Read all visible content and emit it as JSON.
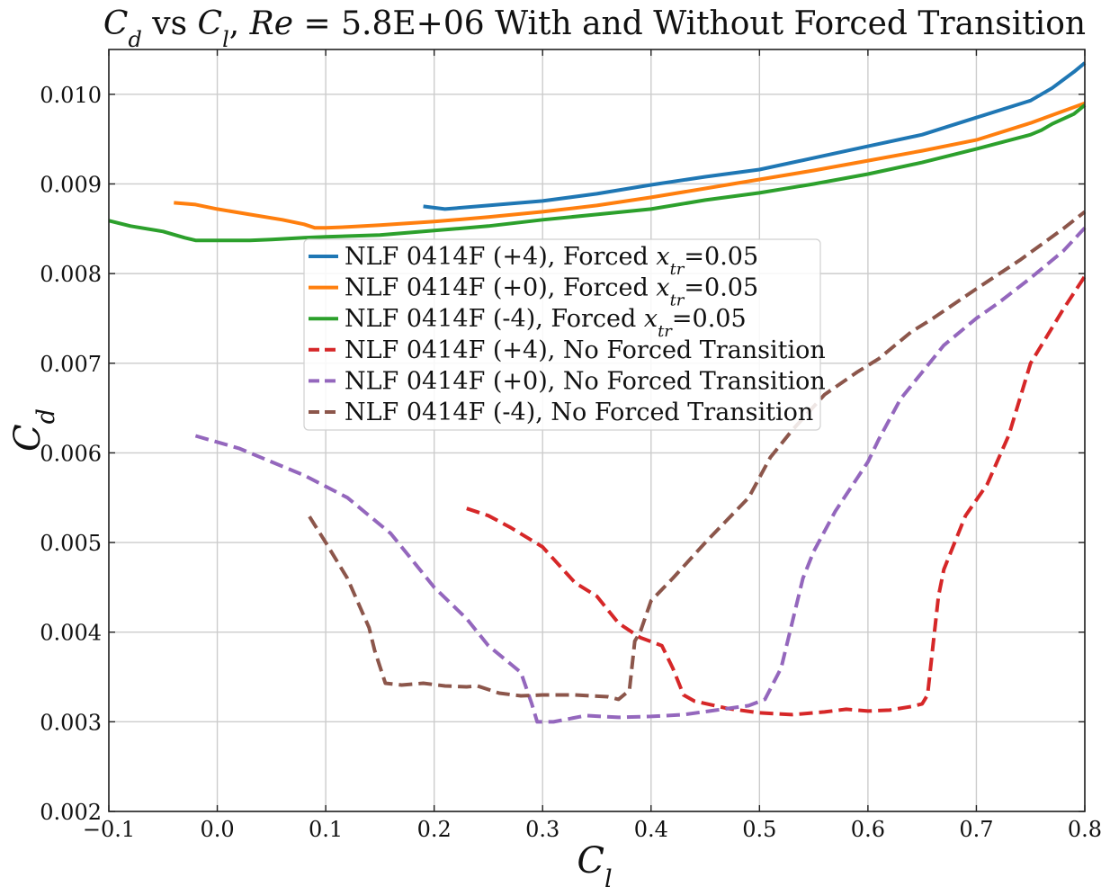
{
  "chart_data": {
    "type": "line",
    "title_parts": [
      {
        "text": "C",
        "italic": true
      },
      {
        "text": "d",
        "italic": true,
        "sub": true
      },
      {
        "text": " vs "
      },
      {
        "text": "C",
        "italic": true
      },
      {
        "text": "l",
        "italic": true,
        "sub": true
      },
      {
        "text": ", "
      },
      {
        "text": "Re",
        "italic": true
      },
      {
        "text": " = 5.8E+06 With and Without Forced Transition"
      }
    ],
    "xlabel": {
      "main": "C",
      "sub": "l"
    },
    "ylabel": {
      "main": "C",
      "sub": "d"
    },
    "xlim": [
      -0.1,
      0.8
    ],
    "ylim": [
      0.002,
      0.0105
    ],
    "xticks": [
      -0.1,
      0.0,
      0.1,
      0.2,
      0.3,
      0.4,
      0.5,
      0.6,
      0.7,
      0.8
    ],
    "xtick_labels": [
      "−0.1",
      "0.0",
      "0.1",
      "0.2",
      "0.3",
      "0.4",
      "0.5",
      "0.6",
      "0.7",
      "0.8"
    ],
    "yticks": [
      0.002,
      0.003,
      0.004,
      0.005,
      0.006,
      0.007,
      0.008,
      0.009,
      0.01
    ],
    "ytick_labels": [
      "0.002",
      "0.003",
      "0.004",
      "0.005",
      "0.006",
      "0.007",
      "0.008",
      "0.009",
      "0.010"
    ],
    "grid": true,
    "legend_position": "upper-center",
    "series": [
      {
        "name_parts": [
          {
            "text": "NLF 0414F (+4), Forced "
          },
          {
            "text": "x",
            "italic": true
          },
          {
            "text": "tr",
            "italic": true,
            "sub": true
          },
          {
            "text": "=0.05"
          }
        ],
        "color": "#1f77b4",
        "dash": "solid",
        "points": [
          [
            0.19,
            0.00875
          ],
          [
            0.21,
            0.00872
          ],
          [
            0.25,
            0.00876
          ],
          [
            0.3,
            0.00881
          ],
          [
            0.35,
            0.00889
          ],
          [
            0.4,
            0.00899
          ],
          [
            0.45,
            0.00908
          ],
          [
            0.5,
            0.00916
          ],
          [
            0.55,
            0.00929
          ],
          [
            0.6,
            0.00942
          ],
          [
            0.65,
            0.00955
          ],
          [
            0.7,
            0.00974
          ],
          [
            0.75,
            0.00993
          ],
          [
            0.77,
            0.01007
          ],
          [
            0.79,
            0.01025
          ],
          [
            0.8,
            0.01035
          ]
        ]
      },
      {
        "name_parts": [
          {
            "text": "NLF 0414F (+0), Forced "
          },
          {
            "text": "x",
            "italic": true
          },
          {
            "text": "tr",
            "italic": true,
            "sub": true
          },
          {
            "text": "=0.05"
          }
        ],
        "color": "#ff7f0e",
        "dash": "solid",
        "points": [
          [
            -0.04,
            0.00879
          ],
          [
            -0.02,
            0.00877
          ],
          [
            0.0,
            0.00872
          ],
          [
            0.03,
            0.00866
          ],
          [
            0.06,
            0.0086
          ],
          [
            0.08,
            0.00855
          ],
          [
            0.09,
            0.00851
          ],
          [
            0.1,
            0.00851
          ],
          [
            0.12,
            0.00852
          ],
          [
            0.15,
            0.00854
          ],
          [
            0.2,
            0.00858
          ],
          [
            0.25,
            0.00863
          ],
          [
            0.3,
            0.00869
          ],
          [
            0.35,
            0.00876
          ],
          [
            0.4,
            0.00885
          ],
          [
            0.45,
            0.00895
          ],
          [
            0.5,
            0.00905
          ],
          [
            0.55,
            0.00915
          ],
          [
            0.6,
            0.00926
          ],
          [
            0.65,
            0.00937
          ],
          [
            0.7,
            0.00949
          ],
          [
            0.75,
            0.00968
          ],
          [
            0.8,
            0.0099
          ]
        ]
      },
      {
        "name_parts": [
          {
            "text": "NLF 0414F (-4), Forced "
          },
          {
            "text": "x",
            "italic": true
          },
          {
            "text": "tr",
            "italic": true,
            "sub": true
          },
          {
            "text": "=0.05"
          }
        ],
        "color": "#2ca02c",
        "dash": "solid",
        "points": [
          [
            -0.1,
            0.00859
          ],
          [
            -0.08,
            0.00853
          ],
          [
            -0.05,
            0.00847
          ],
          [
            -0.03,
            0.0084
          ],
          [
            -0.02,
            0.00837
          ],
          [
            0.0,
            0.00837
          ],
          [
            0.03,
            0.00837
          ],
          [
            0.05,
            0.00838
          ],
          [
            0.08,
            0.0084
          ],
          [
            0.1,
            0.00841
          ],
          [
            0.15,
            0.00843
          ],
          [
            0.2,
            0.00848
          ],
          [
            0.25,
            0.00853
          ],
          [
            0.3,
            0.0086
          ],
          [
            0.35,
            0.00866
          ],
          [
            0.4,
            0.00872
          ],
          [
            0.45,
            0.00882
          ],
          [
            0.5,
            0.0089
          ],
          [
            0.55,
            0.009
          ],
          [
            0.6,
            0.00911
          ],
          [
            0.65,
            0.00924
          ],
          [
            0.7,
            0.00939
          ],
          [
            0.75,
            0.00955
          ],
          [
            0.76,
            0.0096
          ],
          [
            0.77,
            0.00967
          ],
          [
            0.79,
            0.00978
          ],
          [
            0.8,
            0.00988
          ]
        ]
      },
      {
        "name_parts": [
          {
            "text": "NLF 0414F (+4), No Forced Transition"
          }
        ],
        "color": "#d62728",
        "dash": "dashed",
        "points": [
          [
            0.23,
            0.00538
          ],
          [
            0.25,
            0.0053
          ],
          [
            0.27,
            0.00517
          ],
          [
            0.3,
            0.00495
          ],
          [
            0.33,
            0.00455
          ],
          [
            0.35,
            0.0044
          ],
          [
            0.37,
            0.0041
          ],
          [
            0.39,
            0.00394
          ],
          [
            0.41,
            0.00385
          ],
          [
            0.42,
            0.0036
          ],
          [
            0.43,
            0.0033
          ],
          [
            0.44,
            0.00323
          ],
          [
            0.47,
            0.00315
          ],
          [
            0.5,
            0.0031
          ],
          [
            0.53,
            0.00308
          ],
          [
            0.56,
            0.00311
          ],
          [
            0.58,
            0.00314
          ],
          [
            0.6,
            0.00312
          ],
          [
            0.62,
            0.00313
          ],
          [
            0.64,
            0.00317
          ],
          [
            0.65,
            0.0032
          ],
          [
            0.655,
            0.0033
          ],
          [
            0.66,
            0.00385
          ],
          [
            0.665,
            0.0044
          ],
          [
            0.67,
            0.0047
          ],
          [
            0.68,
            0.005
          ],
          [
            0.69,
            0.0053
          ],
          [
            0.71,
            0.00565
          ],
          [
            0.73,
            0.0062
          ],
          [
            0.75,
            0.007
          ],
          [
            0.78,
            0.0076
          ],
          [
            0.8,
            0.00797
          ]
        ]
      },
      {
        "name_parts": [
          {
            "text": "NLF 0414F (+0), No Forced Transition"
          }
        ],
        "color": "#9467bd",
        "dash": "dashed",
        "points": [
          [
            -0.02,
            0.00619
          ],
          [
            0.02,
            0.00605
          ],
          [
            0.05,
            0.0059
          ],
          [
            0.08,
            0.00575
          ],
          [
            0.12,
            0.0055
          ],
          [
            0.16,
            0.0051
          ],
          [
            0.18,
            0.0048
          ],
          [
            0.2,
            0.0045
          ],
          [
            0.23,
            0.00415
          ],
          [
            0.25,
            0.00385
          ],
          [
            0.28,
            0.00355
          ],
          [
            0.29,
            0.0032
          ],
          [
            0.295,
            0.003
          ],
          [
            0.31,
            0.003
          ],
          [
            0.34,
            0.00307
          ],
          [
            0.37,
            0.00305
          ],
          [
            0.4,
            0.00306
          ],
          [
            0.43,
            0.00308
          ],
          [
            0.46,
            0.00313
          ],
          [
            0.49,
            0.00318
          ],
          [
            0.505,
            0.00325
          ],
          [
            0.52,
            0.0036
          ],
          [
            0.54,
            0.0046
          ],
          [
            0.55,
            0.0049
          ],
          [
            0.57,
            0.00535
          ],
          [
            0.6,
            0.0059
          ],
          [
            0.61,
            0.00615
          ],
          [
            0.63,
            0.0066
          ],
          [
            0.65,
            0.0069
          ],
          [
            0.67,
            0.0072
          ],
          [
            0.7,
            0.0075
          ],
          [
            0.72,
            0.00767
          ],
          [
            0.75,
            0.00795
          ],
          [
            0.78,
            0.00825
          ],
          [
            0.8,
            0.00851
          ]
        ]
      },
      {
        "name_parts": [
          {
            "text": "NLF 0414F (-4), No Forced Transition"
          }
        ],
        "color": "#8c564b",
        "dash": "dashed",
        "points": [
          [
            0.085,
            0.00529
          ],
          [
            0.1,
            0.005
          ],
          [
            0.12,
            0.0046
          ],
          [
            0.14,
            0.00405
          ],
          [
            0.145,
            0.0038
          ],
          [
            0.155,
            0.00343
          ],
          [
            0.17,
            0.00341
          ],
          [
            0.19,
            0.00343
          ],
          [
            0.21,
            0.0034
          ],
          [
            0.23,
            0.00339
          ],
          [
            0.24,
            0.0034
          ],
          [
            0.26,
            0.00332
          ],
          [
            0.28,
            0.00329
          ],
          [
            0.3,
            0.0033
          ],
          [
            0.33,
            0.0033
          ],
          [
            0.36,
            0.00328
          ],
          [
            0.37,
            0.00325
          ],
          [
            0.38,
            0.00335
          ],
          [
            0.385,
            0.0039
          ],
          [
            0.39,
            0.004
          ],
          [
            0.4,
            0.00435
          ],
          [
            0.42,
            0.0046
          ],
          [
            0.45,
            0.005
          ],
          [
            0.47,
            0.00525
          ],
          [
            0.49,
            0.0055
          ],
          [
            0.51,
            0.00595
          ],
          [
            0.53,
            0.00625
          ],
          [
            0.56,
            0.00665
          ],
          [
            0.59,
            0.0069
          ],
          [
            0.61,
            0.00705
          ],
          [
            0.64,
            0.00735
          ],
          [
            0.66,
            0.0075
          ],
          [
            0.7,
            0.00783
          ],
          [
            0.74,
            0.00815
          ],
          [
            0.78,
            0.0085
          ],
          [
            0.8,
            0.00869
          ]
        ]
      }
    ]
  }
}
